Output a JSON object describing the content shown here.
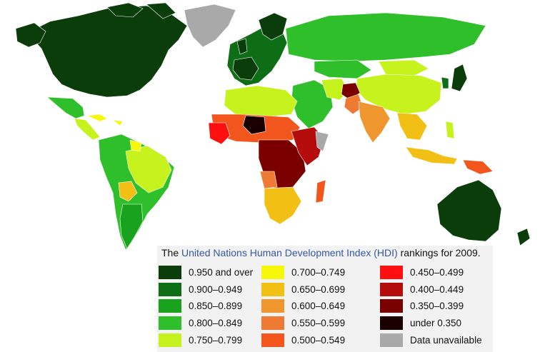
{
  "caption": {
    "prefix": "The ",
    "link": "United Nations Human Development Index (HDI)",
    "suffix": " rankings for 2009."
  },
  "colors": {
    "ocean": "#ffffff",
    "border": "#ffffff"
  },
  "legend": [
    {
      "label": "0.950 and over",
      "color": "#0b3d0b"
    },
    {
      "label": "0.900–0.949",
      "color": "#0d6e16"
    },
    {
      "label": "0.850–0.899",
      "color": "#18a21e"
    },
    {
      "label": "0.800–0.849",
      "color": "#2fbf2a"
    },
    {
      "label": "0.750–0.799",
      "color": "#c6f21d"
    },
    {
      "label": "0.700–0.749",
      "color": "#f7f70a"
    },
    {
      "label": "0.650–0.699",
      "color": "#f2c014"
    },
    {
      "label": "0.600–0.649",
      "color": "#f0962f"
    },
    {
      "label": "0.550–0.599",
      "color": "#ee7a34"
    },
    {
      "label": "0.500–0.549",
      "color": "#f2561d"
    },
    {
      "label": "0.450–0.499",
      "color": "#ff1010"
    },
    {
      "label": "0.400–0.449",
      "color": "#b40b0b"
    },
    {
      "label": "0.350–0.399",
      "color": "#7a0000"
    },
    {
      "label": "under 0.350",
      "color": "#1a0000"
    },
    {
      "label": "Data unavailable",
      "color": "#a9a9a9"
    }
  ]
}
